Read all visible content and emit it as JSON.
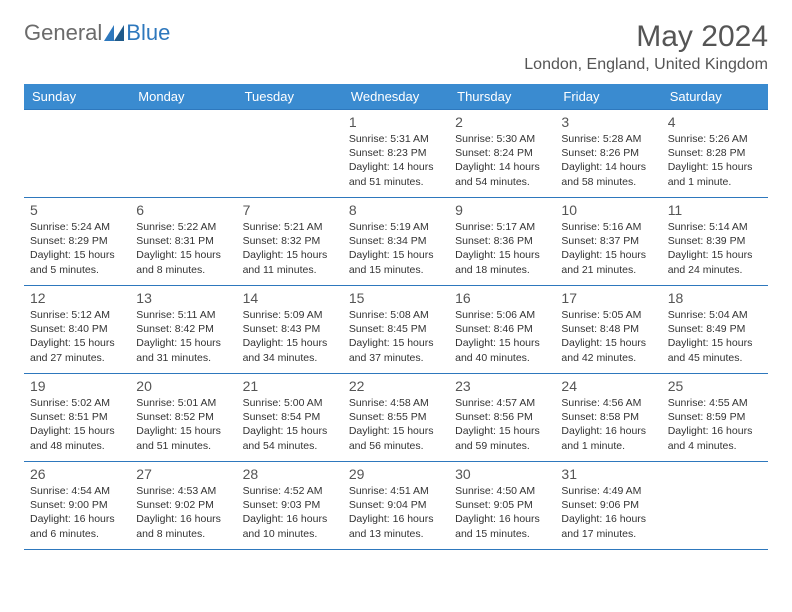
{
  "logo": {
    "general": "General",
    "blue": "Blue"
  },
  "month_title": "May 2024",
  "location": "London, England, United Kingdom",
  "colors": {
    "header_bg": "#3a8bd0",
    "border": "#2e78bd",
    "text": "#333333",
    "muted": "#555555"
  },
  "day_headers": [
    "Sunday",
    "Monday",
    "Tuesday",
    "Wednesday",
    "Thursday",
    "Friday",
    "Saturday"
  ],
  "weeks": [
    [
      {
        "num": "",
        "sunrise": "",
        "sunset": "",
        "daylight": ""
      },
      {
        "num": "",
        "sunrise": "",
        "sunset": "",
        "daylight": ""
      },
      {
        "num": "",
        "sunrise": "",
        "sunset": "",
        "daylight": ""
      },
      {
        "num": "1",
        "sunrise": "Sunrise: 5:31 AM",
        "sunset": "Sunset: 8:23 PM",
        "daylight": "Daylight: 14 hours and 51 minutes."
      },
      {
        "num": "2",
        "sunrise": "Sunrise: 5:30 AM",
        "sunset": "Sunset: 8:24 PM",
        "daylight": "Daylight: 14 hours and 54 minutes."
      },
      {
        "num": "3",
        "sunrise": "Sunrise: 5:28 AM",
        "sunset": "Sunset: 8:26 PM",
        "daylight": "Daylight: 14 hours and 58 minutes."
      },
      {
        "num": "4",
        "sunrise": "Sunrise: 5:26 AM",
        "sunset": "Sunset: 8:28 PM",
        "daylight": "Daylight: 15 hours and 1 minute."
      }
    ],
    [
      {
        "num": "5",
        "sunrise": "Sunrise: 5:24 AM",
        "sunset": "Sunset: 8:29 PM",
        "daylight": "Daylight: 15 hours and 5 minutes."
      },
      {
        "num": "6",
        "sunrise": "Sunrise: 5:22 AM",
        "sunset": "Sunset: 8:31 PM",
        "daylight": "Daylight: 15 hours and 8 minutes."
      },
      {
        "num": "7",
        "sunrise": "Sunrise: 5:21 AM",
        "sunset": "Sunset: 8:32 PM",
        "daylight": "Daylight: 15 hours and 11 minutes."
      },
      {
        "num": "8",
        "sunrise": "Sunrise: 5:19 AM",
        "sunset": "Sunset: 8:34 PM",
        "daylight": "Daylight: 15 hours and 15 minutes."
      },
      {
        "num": "9",
        "sunrise": "Sunrise: 5:17 AM",
        "sunset": "Sunset: 8:36 PM",
        "daylight": "Daylight: 15 hours and 18 minutes."
      },
      {
        "num": "10",
        "sunrise": "Sunrise: 5:16 AM",
        "sunset": "Sunset: 8:37 PM",
        "daylight": "Daylight: 15 hours and 21 minutes."
      },
      {
        "num": "11",
        "sunrise": "Sunrise: 5:14 AM",
        "sunset": "Sunset: 8:39 PM",
        "daylight": "Daylight: 15 hours and 24 minutes."
      }
    ],
    [
      {
        "num": "12",
        "sunrise": "Sunrise: 5:12 AM",
        "sunset": "Sunset: 8:40 PM",
        "daylight": "Daylight: 15 hours and 27 minutes."
      },
      {
        "num": "13",
        "sunrise": "Sunrise: 5:11 AM",
        "sunset": "Sunset: 8:42 PM",
        "daylight": "Daylight: 15 hours and 31 minutes."
      },
      {
        "num": "14",
        "sunrise": "Sunrise: 5:09 AM",
        "sunset": "Sunset: 8:43 PM",
        "daylight": "Daylight: 15 hours and 34 minutes."
      },
      {
        "num": "15",
        "sunrise": "Sunrise: 5:08 AM",
        "sunset": "Sunset: 8:45 PM",
        "daylight": "Daylight: 15 hours and 37 minutes."
      },
      {
        "num": "16",
        "sunrise": "Sunrise: 5:06 AM",
        "sunset": "Sunset: 8:46 PM",
        "daylight": "Daylight: 15 hours and 40 minutes."
      },
      {
        "num": "17",
        "sunrise": "Sunrise: 5:05 AM",
        "sunset": "Sunset: 8:48 PM",
        "daylight": "Daylight: 15 hours and 42 minutes."
      },
      {
        "num": "18",
        "sunrise": "Sunrise: 5:04 AM",
        "sunset": "Sunset: 8:49 PM",
        "daylight": "Daylight: 15 hours and 45 minutes."
      }
    ],
    [
      {
        "num": "19",
        "sunrise": "Sunrise: 5:02 AM",
        "sunset": "Sunset: 8:51 PM",
        "daylight": "Daylight: 15 hours and 48 minutes."
      },
      {
        "num": "20",
        "sunrise": "Sunrise: 5:01 AM",
        "sunset": "Sunset: 8:52 PM",
        "daylight": "Daylight: 15 hours and 51 minutes."
      },
      {
        "num": "21",
        "sunrise": "Sunrise: 5:00 AM",
        "sunset": "Sunset: 8:54 PM",
        "daylight": "Daylight: 15 hours and 54 minutes."
      },
      {
        "num": "22",
        "sunrise": "Sunrise: 4:58 AM",
        "sunset": "Sunset: 8:55 PM",
        "daylight": "Daylight: 15 hours and 56 minutes."
      },
      {
        "num": "23",
        "sunrise": "Sunrise: 4:57 AM",
        "sunset": "Sunset: 8:56 PM",
        "daylight": "Daylight: 15 hours and 59 minutes."
      },
      {
        "num": "24",
        "sunrise": "Sunrise: 4:56 AM",
        "sunset": "Sunset: 8:58 PM",
        "daylight": "Daylight: 16 hours and 1 minute."
      },
      {
        "num": "25",
        "sunrise": "Sunrise: 4:55 AM",
        "sunset": "Sunset: 8:59 PM",
        "daylight": "Daylight: 16 hours and 4 minutes."
      }
    ],
    [
      {
        "num": "26",
        "sunrise": "Sunrise: 4:54 AM",
        "sunset": "Sunset: 9:00 PM",
        "daylight": "Daylight: 16 hours and 6 minutes."
      },
      {
        "num": "27",
        "sunrise": "Sunrise: 4:53 AM",
        "sunset": "Sunset: 9:02 PM",
        "daylight": "Daylight: 16 hours and 8 minutes."
      },
      {
        "num": "28",
        "sunrise": "Sunrise: 4:52 AM",
        "sunset": "Sunset: 9:03 PM",
        "daylight": "Daylight: 16 hours and 10 minutes."
      },
      {
        "num": "29",
        "sunrise": "Sunrise: 4:51 AM",
        "sunset": "Sunset: 9:04 PM",
        "daylight": "Daylight: 16 hours and 13 minutes."
      },
      {
        "num": "30",
        "sunrise": "Sunrise: 4:50 AM",
        "sunset": "Sunset: 9:05 PM",
        "daylight": "Daylight: 16 hours and 15 minutes."
      },
      {
        "num": "31",
        "sunrise": "Sunrise: 4:49 AM",
        "sunset": "Sunset: 9:06 PM",
        "daylight": "Daylight: 16 hours and 17 minutes."
      },
      {
        "num": "",
        "sunrise": "",
        "sunset": "",
        "daylight": ""
      }
    ]
  ]
}
